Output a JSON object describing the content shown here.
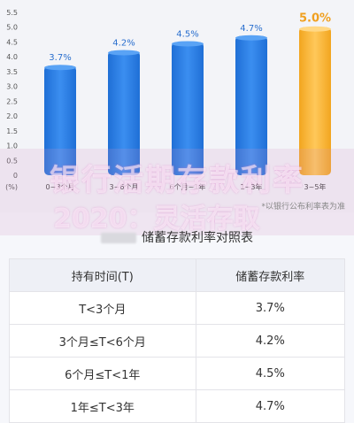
{
  "chart_data": {
    "type": "bar",
    "categories": [
      "0~3个月",
      "3~6个月",
      "6个月~1年",
      "1~3年",
      "3~5年"
    ],
    "values": [
      3.7,
      4.2,
      4.5,
      4.7,
      5.0
    ],
    "value_labels": [
      "3.7%",
      "4.2%",
      "4.5%",
      "4.7%",
      "5.0%"
    ],
    "ylim": [
      0,
      5.5
    ],
    "yticks": [
      "0",
      "0.5",
      "1.0",
      "1.5",
      "2.0",
      "2.5",
      "3.0",
      "3.5",
      "4.0",
      "4.5",
      "5.0",
      "5.5"
    ],
    "ylabel": "(%)",
    "grid": false,
    "colors": {
      "normal": "#2f7ee0",
      "highlight": "#f6b43a",
      "highlight_label": "#f0a020"
    },
    "highlight_index": 4
  },
  "overlay": {
    "title": "银行活期存款利率",
    "subtitle": "2020：灵活存取"
  },
  "note": "*以银行公布利率表为准",
  "table": {
    "title": "储蓄存款利率对照表",
    "headers": [
      "持有时间(T)",
      "储蓄存款利率"
    ],
    "rows": [
      [
        "T<3个月",
        "3.7%"
      ],
      [
        "3个月≤T<6个月",
        "4.2%"
      ],
      [
        "6个月≤T<1年",
        "4.5%"
      ],
      [
        "1年≤T<3年",
        "4.7%"
      ]
    ]
  }
}
